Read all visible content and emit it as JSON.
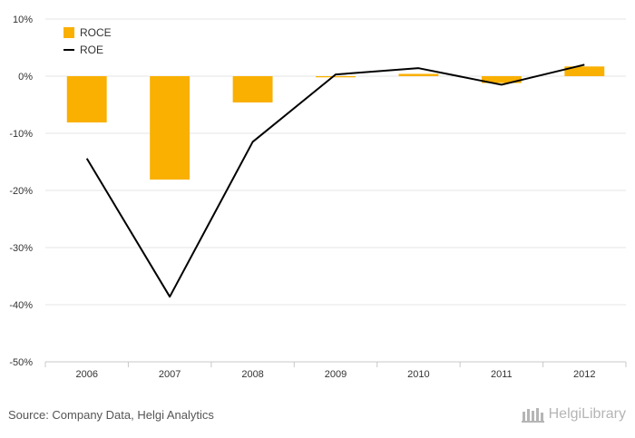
{
  "chart_data": {
    "type": "bar",
    "categories": [
      "2006",
      "2007",
      "2008",
      "2009",
      "2010",
      "2011",
      "2012"
    ],
    "series": [
      {
        "name": "ROCE",
        "type": "bar",
        "color": "#f9b000",
        "values": [
          -8.1,
          -18.1,
          -4.6,
          -0.2,
          0.4,
          -1.2,
          1.7
        ]
      },
      {
        "name": "ROE",
        "type": "line",
        "color": "#000000",
        "values": [
          -14.4,
          -38.6,
          -11.5,
          0.3,
          1.4,
          -1.5,
          2.0
        ]
      }
    ],
    "y_ticks": [
      "10%",
      "0%",
      "-10%",
      "-20%",
      "-30%",
      "-40%",
      "-50%"
    ],
    "ylim": [
      -50,
      10
    ],
    "grid": true,
    "legend": "top-left"
  },
  "source_text": "Source: Company Data, Helgi Analytics",
  "brand_text": "HelgiLibrary"
}
